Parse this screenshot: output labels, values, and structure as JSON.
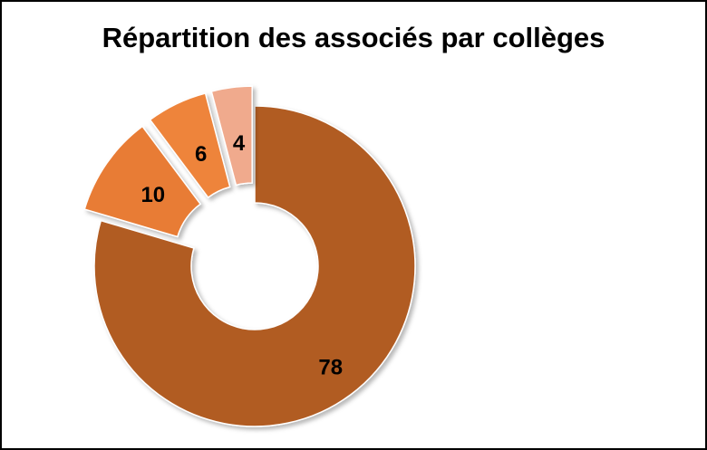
{
  "chart_data": {
    "type": "pie",
    "variant": "doughnut",
    "title": "Répartition des associés par collèges",
    "slices": [
      {
        "value": 78,
        "label": "78",
        "color": "#B15B23",
        "exploded": false
      },
      {
        "value": 10,
        "label": "10",
        "color": "#E87C35",
        "exploded": true
      },
      {
        "value": 6,
        "label": "6",
        "color": "#EE843B",
        "exploded": true
      },
      {
        "value": 4,
        "label": "4",
        "color": "#F0AA8D",
        "exploded": true
      }
    ],
    "legend": "none"
  }
}
